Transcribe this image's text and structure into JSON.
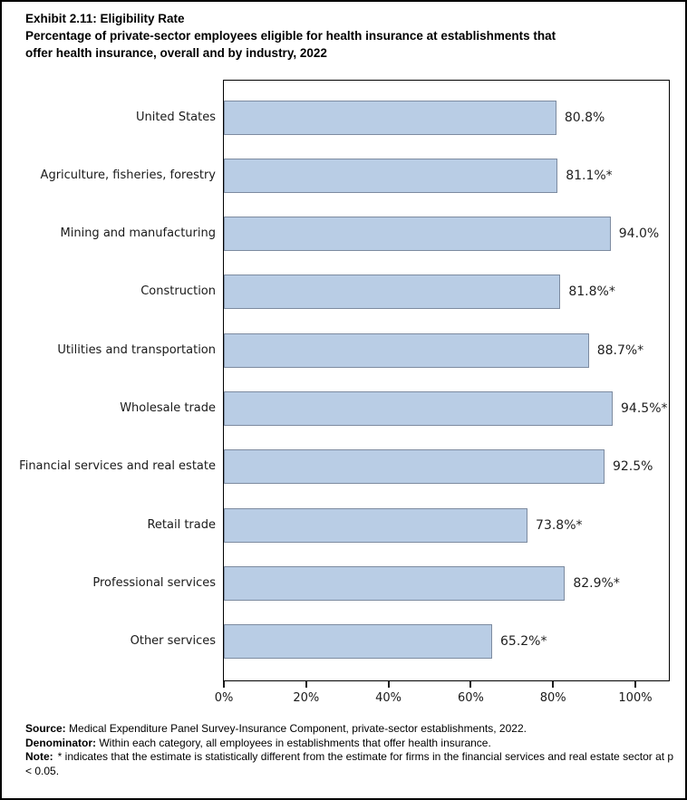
{
  "header": {
    "title": "Exhibit 2.11: Eligibility Rate",
    "subtitle_line1": "Percentage of private-sector employees eligible for health insurance at establishments that",
    "subtitle_line2": "offer health insurance, overall and by industry, 2022"
  },
  "chart_data": {
    "type": "bar",
    "orientation": "horizontal",
    "title": "Exhibit 2.11: Eligibility Rate",
    "subtitle": "Percentage of private-sector employees eligible for health insurance at establishments that offer health insurance, overall and by industry, 2022",
    "categories": [
      "United States",
      "Agriculture, fisheries, forestry",
      "Mining and manufacturing",
      "Construction",
      "Utilities and transportation",
      "Wholesale trade",
      "Financial services and real estate",
      "Retail trade",
      "Professional services",
      "Other services"
    ],
    "values": [
      80.8,
      81.1,
      94.0,
      81.8,
      88.7,
      94.5,
      92.5,
      73.8,
      82.9,
      65.2
    ],
    "value_labels": [
      "80.8%",
      "81.1%*",
      "94.0%",
      "81.8%*",
      "88.7%*",
      "94.5%*",
      "92.5%",
      "73.8%*",
      "82.9%*",
      "65.2%*"
    ],
    "xlabel": "",
    "ylabel": "",
    "x_ticks": [
      "0%",
      "20%",
      "40%",
      "60%",
      "80%",
      "100%"
    ],
    "x_tick_values": [
      0,
      20,
      40,
      60,
      80,
      100
    ],
    "xlim": [
      0,
      108
    ],
    "grid": false,
    "legend": false,
    "bar_fill": "#b9cde5",
    "bar_border": "#7d8ba0"
  },
  "footer": {
    "source_label": "Source:",
    "source_text": "Medical Expenditure Panel Survey-Insurance Component, private-sector establishments, 2022.",
    "denominator_label": "Denominator:",
    "denominator_text": "Within each category, all employees in establishments that offer health insurance.",
    "note_label": "Note:",
    "note_text": "* indicates that the estimate is statistically different from the estimate for firms in the financial services and real estate sector at p < 0.05."
  }
}
